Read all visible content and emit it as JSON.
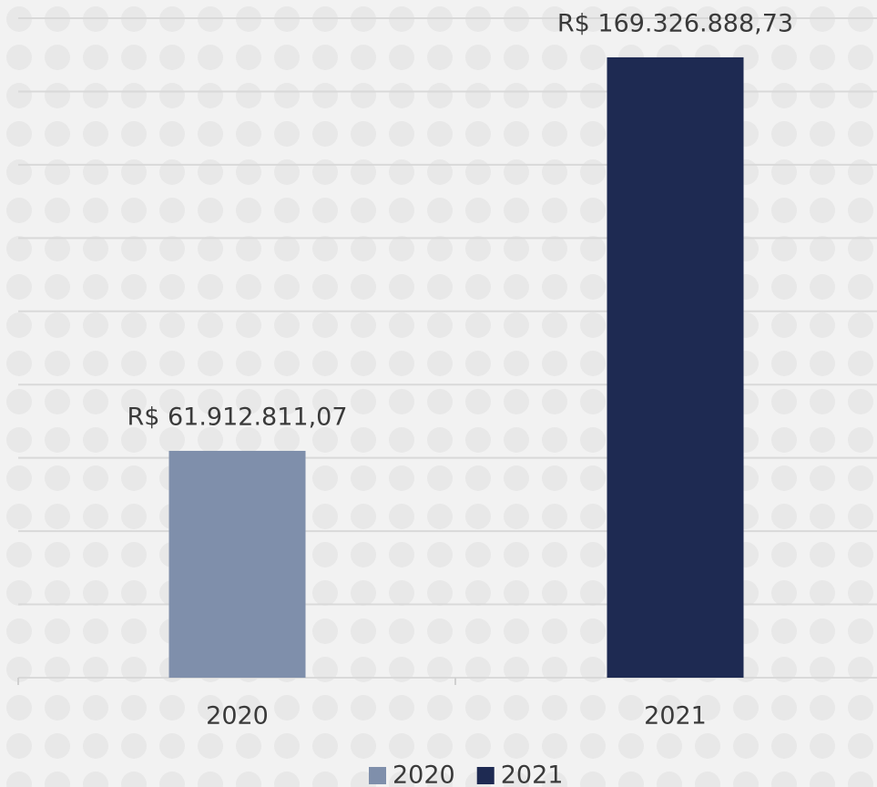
{
  "chart_data": {
    "type": "bar",
    "categories": [
      "2020",
      "2021"
    ],
    "series": [
      {
        "name": "2020",
        "color": "#7f8fab",
        "values": [
          61912811.07,
          null
        ],
        "value_labels": [
          "R$ 61.912.811,07",
          null
        ]
      },
      {
        "name": "2021",
        "color": "#1e2a52",
        "values": [
          null,
          169326888.73
        ],
        "value_labels": [
          null,
          "R$ 169.326.888,73"
        ]
      }
    ],
    "ylim": [
      0,
      180000000
    ],
    "yticks": [
      0,
      20000000,
      40000000,
      60000000,
      80000000,
      100000000,
      120000000,
      140000000,
      160000000,
      180000000
    ],
    "grid": true,
    "legend": "bottom"
  }
}
